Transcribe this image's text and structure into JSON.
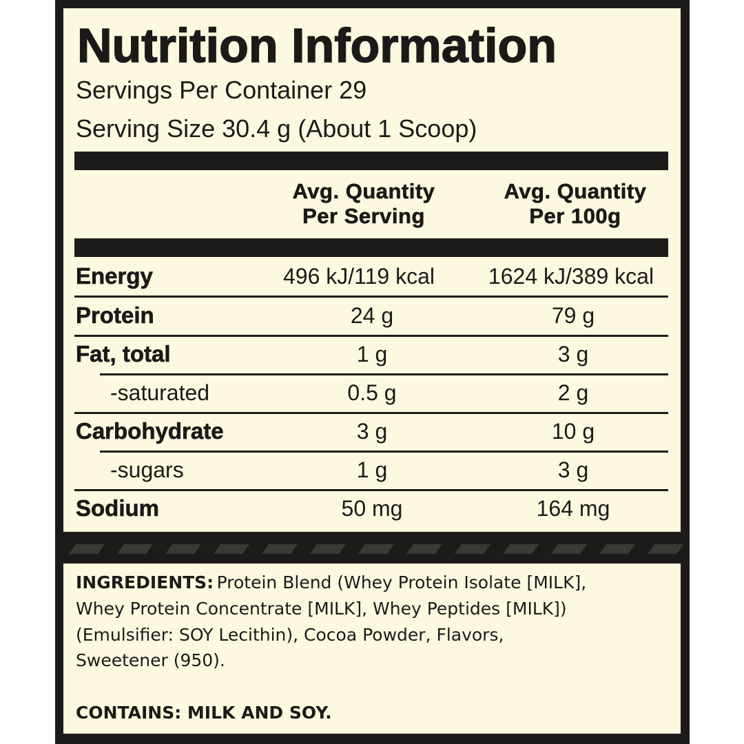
{
  "title": "Nutrition Information",
  "servings_per_container": "Servings Per Container 29",
  "serving_size": "Serving Size 30.4 g (About 1 Scoop)",
  "table": {
    "headers": [
      [
        "Avg. Quantity",
        "Per Serving"
      ],
      [
        "Avg. Quantity",
        "Per 100g"
      ]
    ],
    "rows": [
      {
        "label": "Energy",
        "sub": false,
        "per_serving": "496 kJ/119 kcal",
        "per_100g": "1624 kJ/389 kcal"
      },
      {
        "label": "Protein",
        "sub": false,
        "per_serving": "24 g",
        "per_100g": "79 g"
      },
      {
        "label": "Fat, total",
        "sub": false,
        "per_serving": "1 g",
        "per_100g": "3 g"
      },
      {
        "label": "-saturated",
        "sub": true,
        "per_serving": "0.5 g",
        "per_100g": "2 g"
      },
      {
        "label": "Carbohydrate",
        "sub": false,
        "per_serving": "3 g",
        "per_100g": "10 g"
      },
      {
        "label": "-sugars",
        "sub": true,
        "per_serving": "1 g",
        "per_100g": "3 g"
      },
      {
        "label": "Sodium",
        "sub": false,
        "per_serving": "50 mg",
        "per_100g": "164 mg"
      }
    ]
  },
  "ingredients": {
    "label": "INGREDIENTS:",
    "lines": [
      "Protein Blend (Whey Protein Isolate [MILK],",
      "Whey Protein Concentrate [MILK], Whey Peptides [MILK])",
      "(Emulsifier: SOY Lecithin), Cocoa Powder, Flavors,",
      "Sweetener (950)."
    ]
  },
  "contains": "CONTAINS: MILK AND SOY."
}
